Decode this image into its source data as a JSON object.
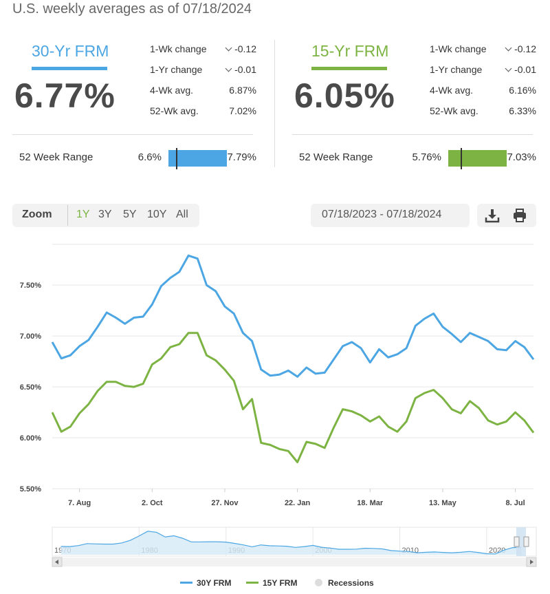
{
  "subtitle": "U.S. weekly averages as of 07/18/2024",
  "colors": {
    "frm30": "#4ba6e3",
    "frm15": "#7cb342",
    "recession": "#dddddd"
  },
  "products": [
    {
      "title": "30-Yr FRM",
      "rate": "6.77%",
      "stats": [
        {
          "label": "1-Wk change",
          "value": "-0.12",
          "arrow": "down-chevron-icon"
        },
        {
          "label": "1-Yr change",
          "value": "-0.01",
          "arrow": "down-chevron-icon"
        },
        {
          "label": "4-Wk avg.",
          "value": "6.87%"
        },
        {
          "label": "52-Wk avg.",
          "value": "7.02%"
        }
      ],
      "range": {
        "label": "52 Week Range",
        "min": "6.6%",
        "max": "7.79%",
        "current_fraction": 0.143
      }
    },
    {
      "title": "15-Yr FRM",
      "rate": "6.05%",
      "stats": [
        {
          "label": "1-Wk change",
          "value": "-0.12",
          "arrow": "down-chevron-icon"
        },
        {
          "label": "1-Yr change",
          "value": "-0.01",
          "arrow": "down-chevron-icon"
        },
        {
          "label": "4-Wk avg.",
          "value": "6.16%"
        },
        {
          "label": "52-Wk avg.",
          "value": "6.33%"
        }
      ],
      "range": {
        "label": "52 Week Range",
        "min": "5.76%",
        "max": "7.03%",
        "current_fraction": 0.228
      }
    }
  ],
  "toolbar": {
    "zoom_label": "Zoom",
    "zoom_options": [
      "1Y",
      "3Y",
      "5Y",
      "10Y",
      "All"
    ],
    "zoom_selected": "1Y",
    "date_range": "07/18/2023 - 07/18/2024",
    "icons": [
      "download-icon",
      "print-icon"
    ]
  },
  "chart_data": {
    "type": "line",
    "ylim": [
      5.5,
      7.9
    ],
    "y_ticks": [
      5.5,
      6.0,
      6.5,
      7.0,
      7.5
    ],
    "y_tick_labels": [
      "5.50%",
      "6.00%",
      "6.50%",
      "7.00%",
      "7.50%"
    ],
    "x_tick_labels": [
      "7. Aug",
      "2. Oct",
      "27. Nov",
      "22. Jan",
      "18. Mar",
      "13. May",
      "8. Jul"
    ],
    "x_tick_index": [
      3,
      11,
      19,
      27,
      35,
      43,
      51
    ],
    "grid": true,
    "legend_placement": "bottom-center",
    "legend": [
      "30Y FRM",
      "15Y FRM",
      "Recessions"
    ],
    "series": [
      {
        "name": "30Y FRM",
        "color": "#4ba6e3",
        "values": [
          6.94,
          6.78,
          6.81,
          6.9,
          6.96,
          7.09,
          7.23,
          7.18,
          7.12,
          7.18,
          7.19,
          7.31,
          7.49,
          7.57,
          7.63,
          7.79,
          7.76,
          7.5,
          7.44,
          7.29,
          7.22,
          7.03,
          6.95,
          6.67,
          6.61,
          6.62,
          6.66,
          6.6,
          6.69,
          6.63,
          6.64,
          6.77,
          6.9,
          6.94,
          6.88,
          6.74,
          6.87,
          6.79,
          6.82,
          6.88,
          7.1,
          7.17,
          7.22,
          7.09,
          7.02,
          6.94,
          7.03,
          6.99,
          6.95,
          6.87,
          6.86,
          6.95,
          6.89,
          6.77
        ]
      },
      {
        "name": "15Y FRM",
        "color": "#7cb342",
        "values": [
          6.25,
          6.06,
          6.11,
          6.24,
          6.33,
          6.46,
          6.55,
          6.55,
          6.51,
          6.5,
          6.53,
          6.72,
          6.78,
          6.89,
          6.92,
          7.03,
          7.03,
          6.81,
          6.76,
          6.67,
          6.56,
          6.28,
          6.38,
          5.95,
          5.93,
          5.89,
          5.87,
          5.76,
          5.96,
          5.94,
          5.9,
          6.1,
          6.28,
          6.26,
          6.22,
          6.16,
          6.21,
          6.11,
          6.06,
          6.16,
          6.39,
          6.44,
          6.47,
          6.39,
          6.28,
          6.24,
          6.36,
          6.29,
          6.17,
          6.13,
          6.16,
          6.25,
          6.17,
          6.05
        ]
      }
    ],
    "navigator": {
      "x_labels": [
        "1970",
        "1980",
        "1990",
        "2000",
        "2010",
        "2020"
      ],
      "x_label_years": [
        1970,
        1980,
        1990,
        2000,
        2010,
        2020
      ],
      "x_range": [
        1970,
        2024.6
      ],
      "ylim": [
        2.5,
        19.0
      ],
      "points": [
        [
          1971,
          7.5
        ],
        [
          1972,
          7.4
        ],
        [
          1973,
          8.0
        ],
        [
          1974,
          9.2
        ],
        [
          1975,
          9.0
        ],
        [
          1976,
          8.9
        ],
        [
          1977,
          8.9
        ],
        [
          1978,
          9.6
        ],
        [
          1979,
          11.2
        ],
        [
          1980,
          13.8
        ],
        [
          1981,
          16.6
        ],
        [
          1982,
          16.0
        ],
        [
          1983,
          13.2
        ],
        [
          1984,
          13.9
        ],
        [
          1985,
          12.4
        ],
        [
          1986,
          10.2
        ],
        [
          1987,
          10.2
        ],
        [
          1988,
          10.3
        ],
        [
          1989,
          10.3
        ],
        [
          1990,
          10.1
        ],
        [
          1991,
          9.3
        ],
        [
          1992,
          8.4
        ],
        [
          1993,
          7.3
        ],
        [
          1994,
          8.4
        ],
        [
          1995,
          7.9
        ],
        [
          1996,
          7.8
        ],
        [
          1997,
          7.6
        ],
        [
          1998,
          6.9
        ],
        [
          1999,
          7.4
        ],
        [
          2000,
          8.1
        ],
        [
          2001,
          7.0
        ],
        [
          2002,
          6.5
        ],
        [
          2003,
          5.8
        ],
        [
          2004,
          5.8
        ],
        [
          2005,
          5.9
        ],
        [
          2006,
          6.4
        ],
        [
          2007,
          6.3
        ],
        [
          2008,
          6.0
        ],
        [
          2009,
          5.0
        ],
        [
          2010,
          4.7
        ],
        [
          2011,
          4.5
        ],
        [
          2012,
          3.7
        ],
        [
          2013,
          4.0
        ],
        [
          2014,
          4.2
        ],
        [
          2015,
          3.9
        ],
        [
          2016,
          3.7
        ],
        [
          2017,
          4.0
        ],
        [
          2018,
          4.5
        ],
        [
          2019,
          3.9
        ],
        [
          2020,
          3.1
        ],
        [
          2021,
          3.0
        ],
        [
          2022,
          5.3
        ],
        [
          2023,
          6.8
        ],
        [
          2024,
          6.9
        ]
      ]
    }
  }
}
